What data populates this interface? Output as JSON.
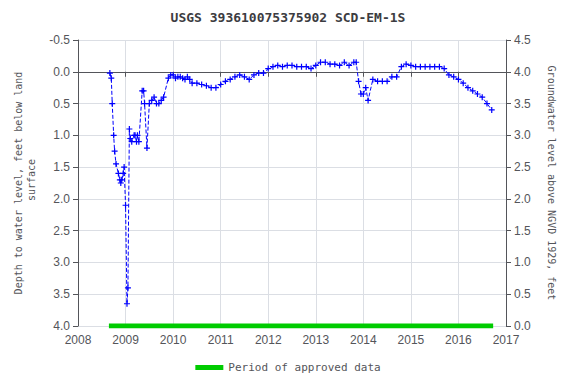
{
  "chart_data": {
    "type": "line",
    "title": "USGS 393610075375902 SCD-EM-1S",
    "ylabel": "Depth to water level, feet below land\n surface",
    "y2label": "Groundwater level above NGVD 1929, feet",
    "xlim": [
      2008.0,
      2017.0
    ],
    "xticks": [
      2008,
      2009,
      2010,
      2011,
      2012,
      2013,
      2014,
      2015,
      2016,
      2017
    ],
    "ylim": [
      4.0,
      -0.5
    ],
    "yticks": [
      -0.5,
      {
        "value": 0,
        "label": "0.0"
      },
      0.5,
      {
        "value": 1,
        "label": "1.0"
      },
      1.5,
      {
        "value": 2,
        "label": "2.0"
      },
      2.5,
      {
        "value": 3,
        "label": "3.0"
      },
      3.5,
      {
        "value": 4,
        "label": "4.0"
      }
    ],
    "y2lim": [
      0.0,
      4.5
    ],
    "y2ticks": [
      {
        "value": 0,
        "label": "0.0"
      },
      0.5,
      {
        "value": 1,
        "label": "1.0"
      },
      1.5,
      {
        "value": 2,
        "label": "2.0"
      },
      2.5,
      {
        "value": 3,
        "label": "3.0"
      },
      3.5,
      {
        "value": 4,
        "label": "4.0"
      },
      4.5
    ],
    "grid": true,
    "legend": "bottom",
    "series": [
      {
        "type": "line",
        "color": "#0000FF",
        "line_style": "dashed",
        "marker": "plus",
        "x": [
          2008.67,
          2008.7,
          2008.72,
          2008.75,
          2008.77,
          2008.8,
          2008.85,
          2008.88,
          2008.9,
          2008.92,
          2008.95,
          2008.97,
          2009.0,
          2009.03,
          2009.05,
          2009.08,
          2009.1,
          2009.13,
          2009.18,
          2009.2,
          2009.23,
          2009.25,
          2009.28,
          2009.35,
          2009.38,
          2009.4,
          2009.45,
          2009.5,
          2009.55,
          2009.6,
          2009.65,
          2009.7,
          2009.75,
          2009.8,
          2009.9,
          2009.95,
          2010.0,
          2010.05,
          2010.1,
          2010.15,
          2010.2,
          2010.25,
          2010.3,
          2010.35,
          2010.4,
          2010.5,
          2010.6,
          2010.7,
          2010.8,
          2010.9,
          2011.0,
          2011.1,
          2011.2,
          2011.3,
          2011.4,
          2011.5,
          2011.6,
          2011.7,
          2011.8,
          2011.9,
          2012.0,
          2012.1,
          2012.2,
          2012.3,
          2012.4,
          2012.5,
          2012.6,
          2012.7,
          2012.8,
          2012.9,
          2013.0,
          2013.1,
          2013.2,
          2013.3,
          2013.4,
          2013.5,
          2013.6,
          2013.7,
          2013.8,
          2013.85,
          2013.9,
          2013.95,
          2014.0,
          2014.05,
          2014.1,
          2014.2,
          2014.3,
          2014.4,
          2014.5,
          2014.6,
          2014.7,
          2014.8,
          2014.9,
          2015.0,
          2015.1,
          2015.2,
          2015.3,
          2015.4,
          2015.5,
          2015.6,
          2015.7,
          2015.8,
          2015.9,
          2016.0,
          2016.1,
          2016.2,
          2016.3,
          2016.4,
          2016.5,
          2016.6,
          2016.7
        ],
        "values": [
          0.02,
          0.1,
          0.5,
          1.0,
          1.25,
          1.45,
          1.6,
          1.7,
          1.75,
          1.7,
          1.6,
          1.5,
          2.1,
          3.65,
          3.4,
          0.9,
          1.05,
          1.1,
          1.0,
          1.0,
          1.1,
          1.0,
          1.1,
          0.3,
          0.3,
          0.5,
          1.2,
          0.5,
          0.45,
          0.4,
          0.5,
          0.5,
          0.45,
          0.4,
          0.1,
          0.05,
          0.05,
          0.1,
          0.08,
          0.08,
          0.1,
          0.12,
          0.08,
          0.12,
          0.18,
          0.18,
          0.2,
          0.22,
          0.25,
          0.25,
          0.2,
          0.15,
          0.12,
          0.08,
          0.05,
          0.08,
          0.12,
          0.05,
          0.02,
          0.02,
          -0.05,
          -0.08,
          -0.1,
          -0.08,
          -0.1,
          -0.1,
          -0.08,
          -0.08,
          -0.08,
          -0.05,
          -0.1,
          -0.15,
          -0.15,
          -0.12,
          -0.12,
          -0.1,
          -0.15,
          -0.1,
          -0.15,
          -0.15,
          0.15,
          0.35,
          0.35,
          0.25,
          0.45,
          0.12,
          0.15,
          0.15,
          0.15,
          0.08,
          0.08,
          -0.08,
          -0.12,
          -0.1,
          -0.08,
          -0.08,
          -0.08,
          -0.08,
          -0.08,
          -0.08,
          -0.05,
          0.05,
          0.08,
          0.12,
          0.18,
          0.25,
          0.3,
          0.35,
          0.4,
          0.5,
          0.6
        ]
      },
      {
        "name": "Period of approved data",
        "type": "line",
        "color": "#00CC00",
        "line_style": "solid",
        "marker": "none",
        "x": [
          2008.65,
          2016.73
        ],
        "values": [
          4.0,
          4.0
        ]
      }
    ]
  }
}
